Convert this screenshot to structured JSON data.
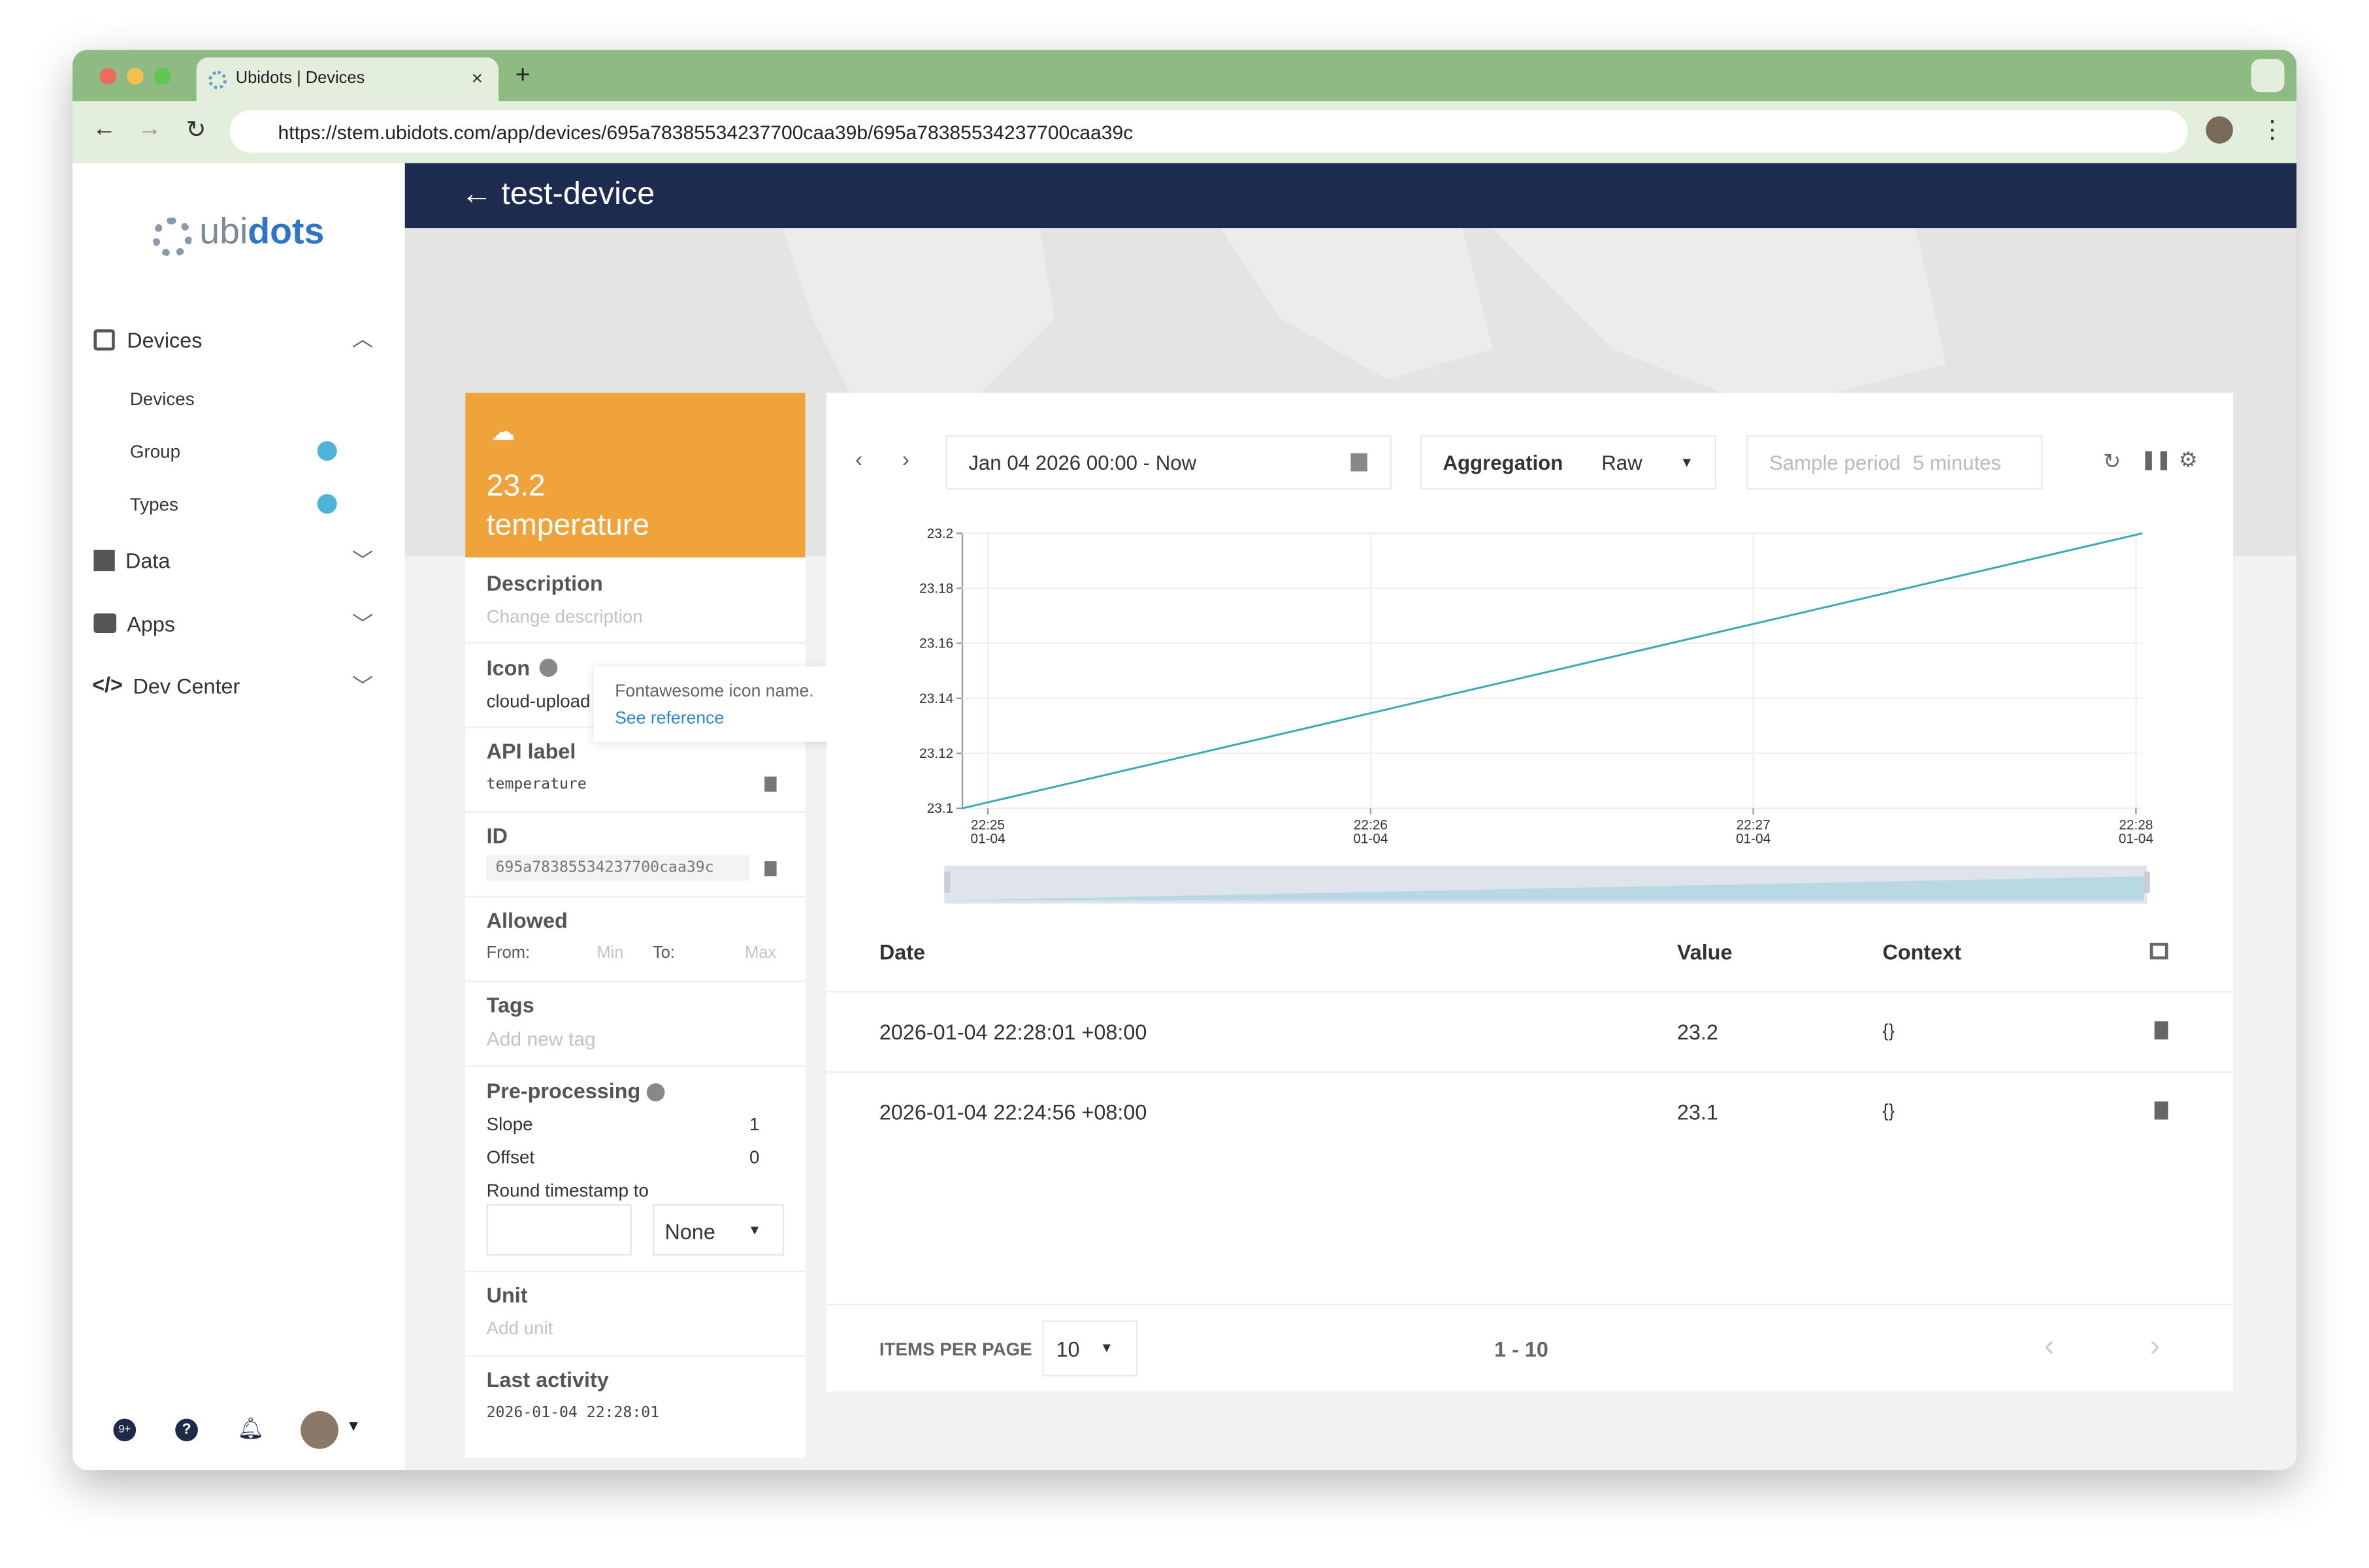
{
  "browser": {
    "tab_title": "Ubidots | Devices",
    "url": "https://stem.ubidots.com/app/devices/695a78385534237700caa39b/695a78385534237700caa39c"
  },
  "sidebar": {
    "logo": {
      "first": "ubi",
      "second": "dots"
    },
    "nav": [
      {
        "label": "Devices",
        "items": [
          "Devices",
          "Group",
          "Types"
        ]
      },
      {
        "label": "Data"
      },
      {
        "label": "Apps"
      },
      {
        "label": "Dev Center"
      }
    ],
    "badge": "9+"
  },
  "header": {
    "title": "test-device"
  },
  "card": {
    "value": 23.2,
    "name": "temperature",
    "description": {
      "label": "Description",
      "placeholder": "Change description"
    },
    "icon": {
      "label": "Icon",
      "value": "cloud-upload"
    },
    "tooltip": {
      "text": "Fontawesome icon name.",
      "link": "See reference"
    },
    "api_label": {
      "label": "API label",
      "value": "temperature"
    },
    "id": {
      "label": "ID",
      "value": "695a78385534237700caa39c"
    },
    "allowed": {
      "label": "Allowed",
      "from": "From:",
      "min": "Min",
      "to": "To:",
      "max": "Max"
    },
    "tags": {
      "label": "Tags",
      "placeholder": "Add new tag"
    },
    "preprocessing": {
      "label": "Pre-processing",
      "slope_label": "Slope",
      "slope": 1,
      "offset_label": "Offset",
      "offset": 0,
      "round_label": "Round timestamp to",
      "round": "None"
    },
    "unit": {
      "label": "Unit",
      "placeholder": "Add unit"
    },
    "last_activity": {
      "label": "Last activity",
      "value": "2026-01-04 22:28:01"
    }
  },
  "toolbar": {
    "date_range": "Jan 04 2026 00:00 - Now",
    "aggregation_label": "Aggregation",
    "aggregation": "Raw",
    "sample_period_label": "Sample period",
    "sample_period": "5 minutes"
  },
  "chart_data": {
    "type": "line",
    "x": [
      "2026-01-04 22:24:56",
      "2026-01-04 22:28:01"
    ],
    "series": [
      {
        "name": "temperature",
        "color": "#3aaab8",
        "values": [
          23.1,
          23.2
        ]
      }
    ],
    "xlim": [
      "2026-01-04 22:24:56",
      "2026-01-04 22:28:01"
    ],
    "xticks": [
      {
        "value": "2026-01-04 22:25",
        "label": "22:25 01-04"
      },
      {
        "value": "2026-01-04 22:26",
        "label": "22:26 01-04"
      },
      {
        "value": "2026-01-04 22:27",
        "label": "22:27 01-04"
      },
      {
        "value": "2026-01-04 22:28",
        "label": "22:28 01-04"
      }
    ],
    "ylim": [
      23.1,
      23.2
    ],
    "yticks": [
      23.1,
      23.12,
      23.14,
      23.16,
      23.18,
      23.2
    ],
    "grid": true
  },
  "table": {
    "columns": [
      "Date",
      "Value",
      "Context"
    ],
    "rows": [
      [
        "2026-01-04 22:28:01 +08:00",
        23.2,
        "{}"
      ],
      [
        "2026-01-04 22:24:56 +08:00",
        23.1,
        "{}"
      ]
    ]
  },
  "pagination": {
    "items_per_page_label": "ITEMS PER PAGE",
    "items_per_page": 10,
    "range": "1 - 10"
  }
}
